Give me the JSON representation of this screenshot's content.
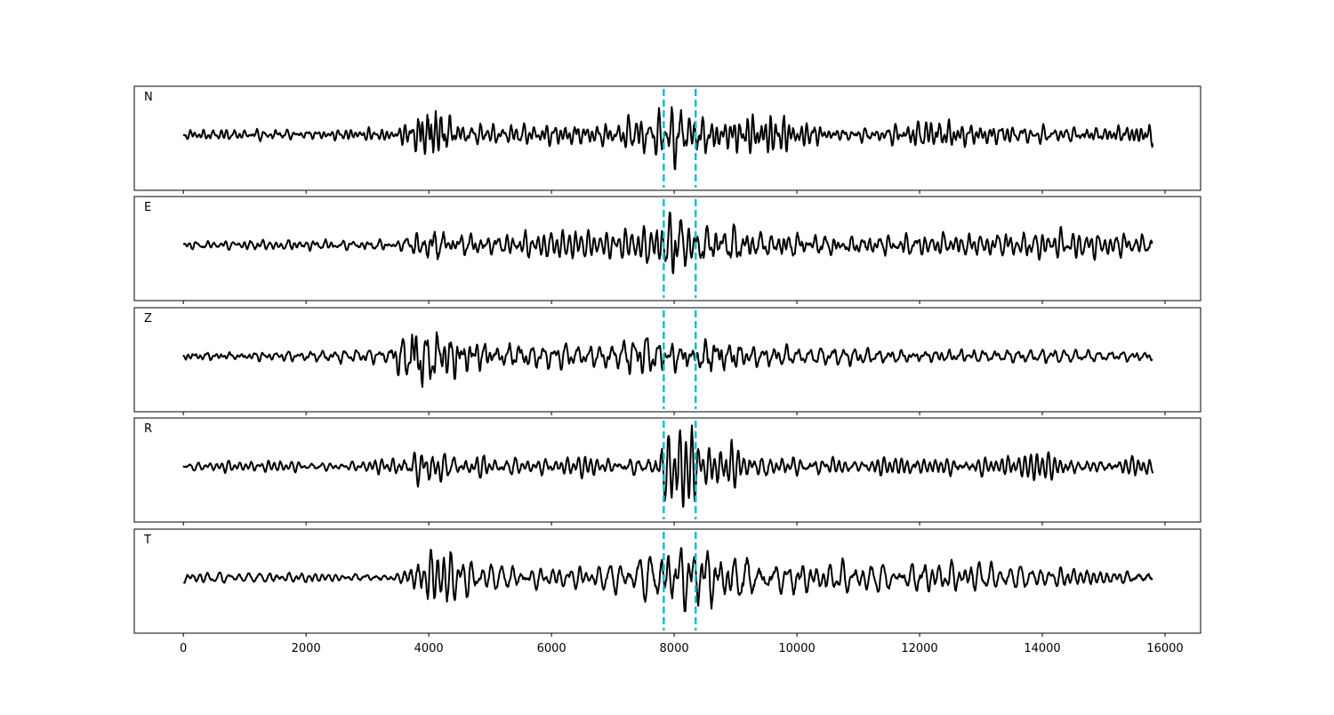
{
  "chart_data": {
    "type": "line",
    "panels": [
      {
        "label": "N",
        "envelope": [
          [
            0,
            0.1
          ],
          [
            1400,
            0.12
          ],
          [
            1500,
            0.22
          ],
          [
            1600,
            0.12
          ],
          [
            3500,
            0.12
          ],
          [
            3800,
            0.45
          ],
          [
            4050,
            0.9
          ],
          [
            4200,
            0.8
          ],
          [
            4450,
            0.35
          ],
          [
            5200,
            0.2
          ],
          [
            7000,
            0.22
          ],
          [
            7500,
            0.45
          ],
          [
            7700,
            0.6
          ],
          [
            7850,
            0.35
          ],
          [
            8050,
            0.95
          ],
          [
            8250,
            0.6
          ],
          [
            8350,
            0.75
          ],
          [
            8700,
            0.35
          ],
          [
            9200,
            0.45
          ],
          [
            9700,
            0.4
          ],
          [
            10500,
            0.22
          ],
          [
            11500,
            0.18
          ],
          [
            12200,
            0.3
          ],
          [
            13000,
            0.2
          ],
          [
            14500,
            0.18
          ],
          [
            15800,
            0.22
          ]
        ],
        "seed": 11
      },
      {
        "label": "E",
        "envelope": [
          [
            0,
            0.1
          ],
          [
            1000,
            0.12
          ],
          [
            3500,
            0.15
          ],
          [
            3800,
            0.35
          ],
          [
            4100,
            0.45
          ],
          [
            4500,
            0.35
          ],
          [
            5500,
            0.25
          ],
          [
            6400,
            0.25
          ],
          [
            7000,
            0.2
          ],
          [
            7600,
            0.4
          ],
          [
            7850,
            0.55
          ],
          [
            8050,
            0.95
          ],
          [
            8250,
            0.6
          ],
          [
            8400,
            0.55
          ],
          [
            8800,
            0.6
          ],
          [
            9300,
            0.4
          ],
          [
            10200,
            0.3
          ],
          [
            12000,
            0.25
          ],
          [
            13500,
            0.3
          ],
          [
            14500,
            0.3
          ],
          [
            15800,
            0.25
          ]
        ],
        "seed": 23
      },
      {
        "label": "Z",
        "envelope": [
          [
            0,
            0.12
          ],
          [
            1500,
            0.1
          ],
          [
            3300,
            0.15
          ],
          [
            3600,
            0.5
          ],
          [
            3750,
            0.95
          ],
          [
            3950,
            0.85
          ],
          [
            4100,
            0.7
          ],
          [
            4400,
            0.5
          ],
          [
            4800,
            0.35
          ],
          [
            5800,
            0.25
          ],
          [
            6600,
            0.2
          ],
          [
            7200,
            0.35
          ],
          [
            7600,
            0.45
          ],
          [
            7800,
            0.3
          ],
          [
            8000,
            0.3
          ],
          [
            8350,
            0.3
          ],
          [
            8550,
            0.55
          ],
          [
            8750,
            0.45
          ],
          [
            9200,
            0.22
          ],
          [
            10000,
            0.18
          ],
          [
            12000,
            0.14
          ],
          [
            14000,
            0.12
          ],
          [
            15800,
            0.1
          ]
        ],
        "seed": 37
      },
      {
        "label": "R",
        "envelope": [
          [
            0,
            0.1
          ],
          [
            1000,
            0.1
          ],
          [
            3000,
            0.12
          ],
          [
            3500,
            0.18
          ],
          [
            3800,
            0.45
          ],
          [
            4100,
            0.4
          ],
          [
            4500,
            0.3
          ],
          [
            5500,
            0.22
          ],
          [
            6500,
            0.18
          ],
          [
            7100,
            0.18
          ],
          [
            7500,
            0.35
          ],
          [
            7750,
            0.55
          ],
          [
            8050,
            0.95
          ],
          [
            8300,
            0.8
          ],
          [
            8450,
            0.45
          ],
          [
            8800,
            0.55
          ],
          [
            9200,
            0.35
          ],
          [
            10000,
            0.25
          ],
          [
            11500,
            0.2
          ],
          [
            13000,
            0.25
          ],
          [
            14000,
            0.28
          ],
          [
            15800,
            0.22
          ]
        ],
        "seed": 53
      },
      {
        "label": "T",
        "envelope": [
          [
            0,
            0.12
          ],
          [
            1400,
            0.12
          ],
          [
            1500,
            0.2
          ],
          [
            1600,
            0.12
          ],
          [
            3500,
            0.15
          ],
          [
            3800,
            0.45
          ],
          [
            4150,
            0.95
          ],
          [
            4300,
            0.7
          ],
          [
            4700,
            0.4
          ],
          [
            5500,
            0.25
          ],
          [
            6800,
            0.25
          ],
          [
            7300,
            0.4
          ],
          [
            7700,
            0.55
          ],
          [
            8050,
            0.75
          ],
          [
            8250,
            0.6
          ],
          [
            8550,
            0.7
          ],
          [
            9000,
            0.55
          ],
          [
            9500,
            0.45
          ],
          [
            10500,
            0.3
          ],
          [
            12000,
            0.35
          ],
          [
            13200,
            0.3
          ],
          [
            14500,
            0.25
          ],
          [
            15800,
            0.2
          ]
        ],
        "seed": 71
      }
    ],
    "x_range": [
      0,
      15800
    ],
    "xlim": [
      -800,
      16580
    ],
    "xticks": [
      0,
      2000,
      4000,
      6000,
      8000,
      10000,
      12000,
      14000,
      16000
    ],
    "markers": [
      7830,
      8350
    ],
    "colors": {
      "trace": "#000000",
      "marker": "#17becf",
      "frame": "#000000"
    },
    "xlabel": "",
    "ylabel": ""
  }
}
